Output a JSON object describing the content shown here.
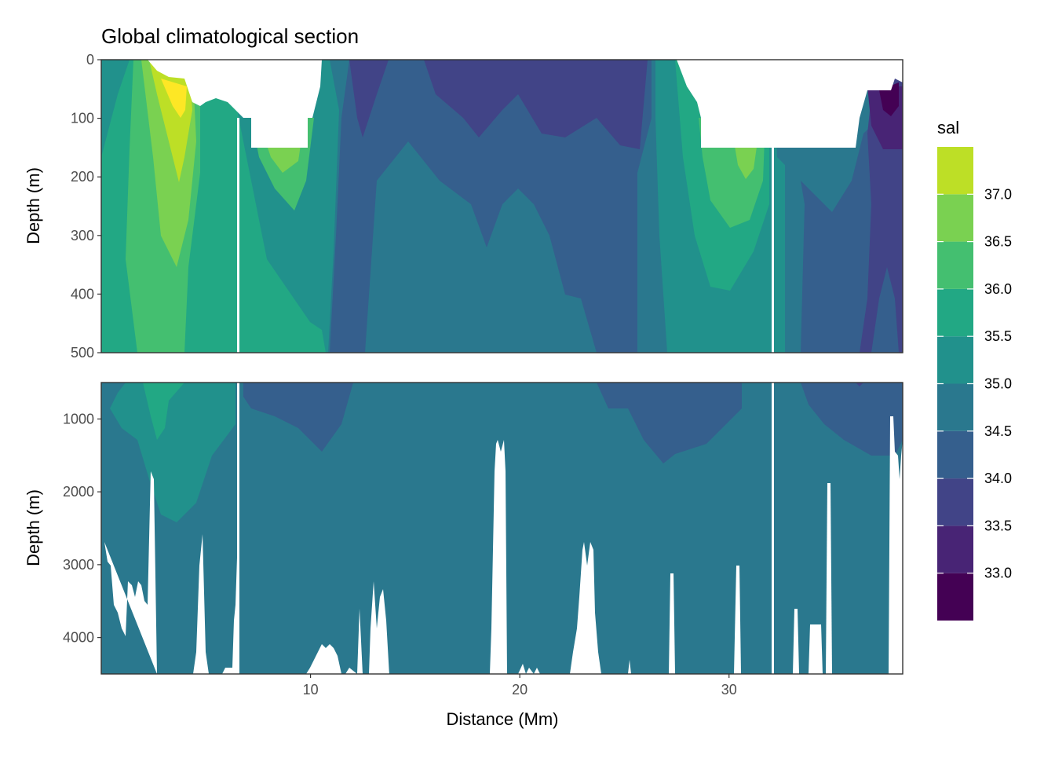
{
  "chart_data": {
    "type": "heatmap",
    "title": "Global climatological section",
    "xlabel": "Distance (Mm)",
    "ylabel": "Depth (m)",
    "x_ticks": [
      10,
      20,
      30
    ],
    "xlim": [
      0,
      38.3
    ],
    "panels": [
      {
        "name": "upper",
        "ylim": [
          0,
          500
        ],
        "y_ticks": [
          0,
          100,
          200,
          300,
          400,
          500
        ]
      },
      {
        "name": "lower",
        "ylim": [
          500,
          4500
        ],
        "y_ticks": [
          1000,
          2000,
          3000,
          4000
        ]
      }
    ],
    "legend": {
      "title": "sal",
      "position": "right",
      "breaks": [
        32.5,
        33.0,
        33.5,
        34.0,
        34.5,
        35.0,
        35.5,
        36.0,
        36.5,
        37.0,
        37.5
      ],
      "labels": [
        "33.0",
        "33.5",
        "34.0",
        "34.5",
        "35.0",
        "35.5",
        "36.0",
        "36.5",
        "37.0"
      ],
      "colors": [
        "#440154",
        "#482475",
        "#414487",
        "#355f8d",
        "#2a788e",
        "#21918c",
        "#22a884",
        "#44bf70",
        "#7ad151",
        "#bddf26",
        "#fde725"
      ]
    },
    "grid": true
  }
}
